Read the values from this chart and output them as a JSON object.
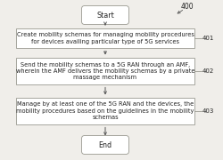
{
  "bg_color": "#f0eeea",
  "title_label": "400",
  "start_label": "Start",
  "end_label": "End",
  "boxes": [
    {
      "text": "Create mobility schemas for managing mobility procedures\nfor devices availing particular type of 5G services",
      "label": "401"
    },
    {
      "text": "Send the mobility schemas to a 5G RAN through an AMF,\nwherein the AMF delivers the mobility schemas by a private\nmassage mechanism",
      "label": "402"
    },
    {
      "text": "Manage by at least one of the 5G RAN and the devices, the\nmobility procedures based on the guidelines in the mobility\nschemas",
      "label": "403"
    }
  ],
  "box_facecolor": "#ffffff",
  "box_edgecolor": "#999990",
  "text_color": "#222222",
  "arrow_color": "#555555",
  "font_size": 4.8,
  "label_font_size": 5.0,
  "terminal_font_size": 5.8,
  "fig_width": 2.5,
  "fig_height": 1.8,
  "dpi": 100
}
